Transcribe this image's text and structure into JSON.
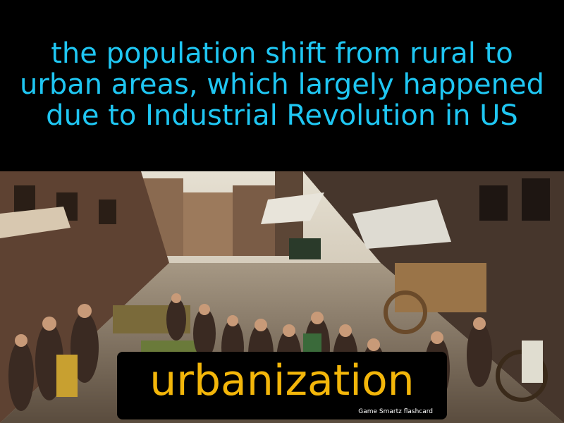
{
  "definition": "the population shift from rural to urban areas, which largely happened due to  Industrial Revolution in US",
  "term": "urbanization",
  "brand": "Game Smartz  flashcard",
  "photo": {
    "description_icon": "crowded-street-photo",
    "colors": {
      "sky": "#d8d2c4",
      "building_left": "#6b4a36",
      "building_right": "#4a3a30",
      "street": "#8a7e70",
      "crowd": "#3a2c24",
      "awning": "#e8e6e0"
    }
  },
  "colors": {
    "definition_text": "#1fc6f2",
    "term_text": "#f3b60a",
    "background": "#000000",
    "brand_text": "#ffffff"
  }
}
